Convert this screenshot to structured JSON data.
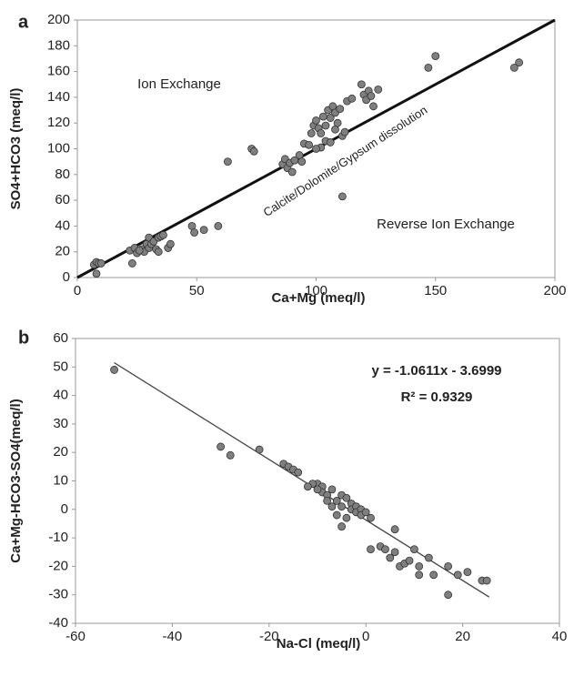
{
  "chart_data": [
    {
      "type": "scatter",
      "panel_label": "a",
      "xlabel": "Ca+Mg (meq/l)",
      "ylabel": "SO4+HCO3 (meq/l)",
      "xlim": [
        0,
        200
      ],
      "ylim": [
        0,
        200
      ],
      "xticks": [
        0,
        50,
        100,
        150,
        200
      ],
      "yticks": [
        0,
        20,
        40,
        60,
        80,
        100,
        120,
        140,
        160,
        180,
        200
      ],
      "color": "#7f7f7f",
      "grid": false,
      "annotations": [
        "Ion Exchange",
        "Calcite/Dolomite/Gypsum dissolution",
        "Reverse Ion Exchange"
      ],
      "reference_line": {
        "x": [
          0,
          200
        ],
        "y": [
          0,
          200
        ]
      },
      "x": [
        7,
        8,
        9,
        8,
        10,
        22,
        23,
        24,
        25,
        27,
        28,
        29,
        30,
        30,
        31,
        32,
        33,
        34,
        35,
        36,
        34,
        38,
        39,
        26,
        48,
        49,
        53,
        59,
        63,
        73,
        74,
        86,
        87,
        88,
        89,
        90,
        91,
        93,
        94,
        95,
        97,
        98,
        99,
        100,
        101,
        102,
        103,
        104,
        105,
        106,
        107,
        108,
        102,
        104,
        106,
        108,
        109,
        110,
        111,
        112,
        113,
        115,
        111,
        100,
        119,
        120,
        121,
        122,
        123,
        124,
        126,
        147,
        150,
        183,
        185
      ],
      "values": [
        10,
        12,
        11,
        3,
        11,
        21,
        11,
        23,
        19,
        22,
        20,
        26,
        31,
        23,
        26,
        28,
        22,
        31,
        32,
        33,
        20,
        23,
        26,
        21,
        40,
        35,
        37,
        40,
        90,
        100,
        98,
        88,
        92,
        85,
        89,
        82,
        91,
        95,
        90,
        104,
        103,
        112,
        118,
        122,
        116,
        112,
        125,
        118,
        130,
        124,
        133,
        128,
        101,
        106,
        105,
        115,
        120,
        131,
        110,
        113,
        137,
        139,
        63,
        100,
        150,
        142,
        138,
        145,
        141,
        133,
        146,
        163,
        172,
        163,
        167
      ]
    },
    {
      "type": "scatter",
      "panel_label": "b",
      "xlabel": "Na-Cl (meq/l)",
      "ylabel": "Ca+Mg-HCO3-SO4(meq/l)",
      "xlim": [
        -60,
        40
      ],
      "ylim": [
        -40,
        60
      ],
      "xticks": [
        -60,
        -40,
        -20,
        0,
        20,
        40
      ],
      "yticks": [
        -40,
        -30,
        -20,
        -10,
        0,
        10,
        20,
        30,
        40,
        50,
        60
      ],
      "color": "#7f7f7f",
      "grid": false,
      "equation": "y = -1.0611x - 3.6999",
      "r_squared": "R² = 0.9329",
      "trend_line": {
        "x": [
          -52,
          25.5
        ],
        "y": [
          51.5,
          -30.8
        ]
      },
      "x": [
        -30,
        -28,
        -22,
        -17,
        -16,
        -15,
        -14,
        -10,
        -9,
        -9,
        -8,
        -7,
        -6,
        -5,
        -5,
        -4,
        -4,
        -3,
        -3,
        -2,
        -2,
        -1,
        -1,
        0,
        1,
        -6,
        -5,
        1,
        3,
        4,
        5,
        6,
        6,
        7,
        8,
        9,
        10,
        11,
        11,
        13,
        14,
        17,
        17,
        19,
        21,
        24,
        25,
        -52,
        -11,
        -12,
        -10,
        -7,
        -8
      ],
      "values": [
        22,
        19,
        21,
        16,
        15,
        14,
        13,
        9,
        8,
        6,
        5,
        7,
        3,
        5,
        1,
        4,
        -3,
        2,
        0,
        1,
        -1,
        0,
        -2,
        -1,
        -3,
        -2,
        -6,
        -14,
        -13,
        -14,
        -17,
        -7,
        -15,
        -20,
        -19,
        -18,
        -14,
        -20,
        -23,
        -17,
        -23,
        -20,
        -30,
        -23,
        -22,
        -25,
        -25,
        49,
        9,
        8,
        7,
        1,
        3
      ]
    }
  ]
}
